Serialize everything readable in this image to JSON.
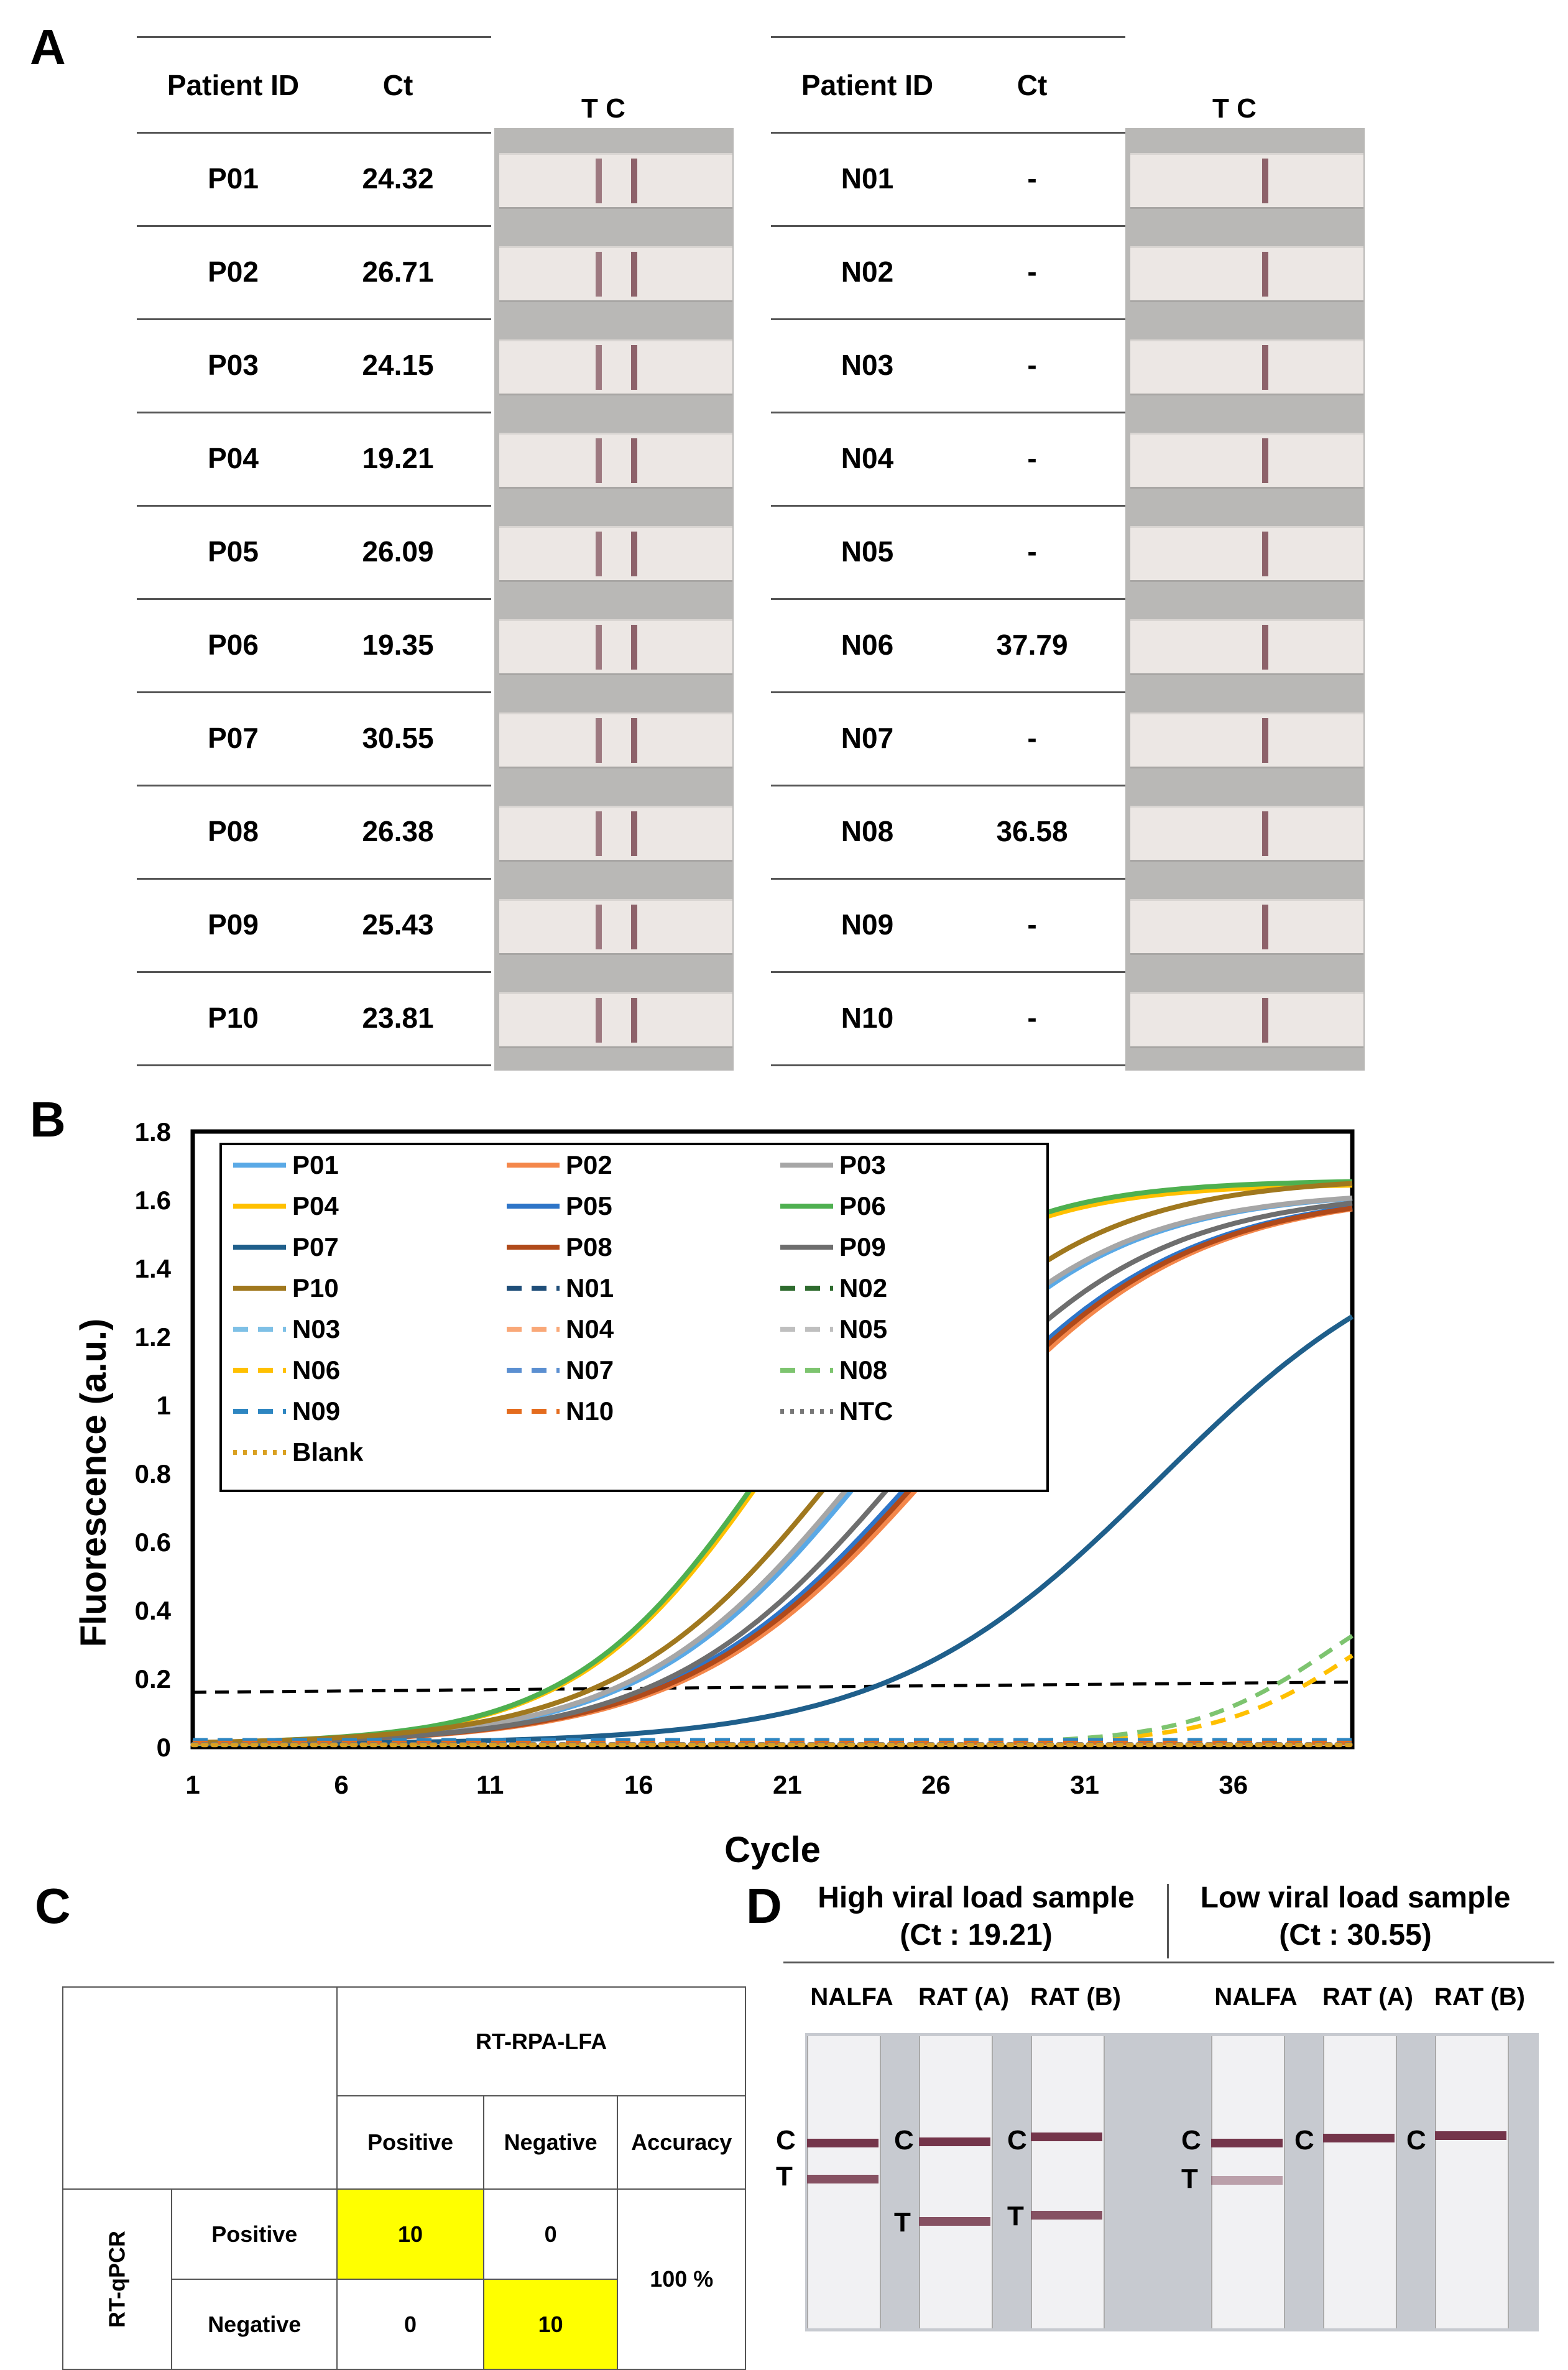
{
  "panels": {
    "a": "A",
    "b": "B",
    "c": "C",
    "d": "D"
  },
  "panel_a": {
    "col_patient": "Patient ID",
    "col_ct": "Ct",
    "strip_header": "T C",
    "positive_rows": [
      {
        "id": "P01",
        "ct": "24.32",
        "test_line": true
      },
      {
        "id": "P02",
        "ct": "26.71",
        "test_line": true
      },
      {
        "id": "P03",
        "ct": "24.15",
        "test_line": true
      },
      {
        "id": "P04",
        "ct": "19.21",
        "test_line": true
      },
      {
        "id": "P05",
        "ct": "26.09",
        "test_line": true
      },
      {
        "id": "P06",
        "ct": "19.35",
        "test_line": true
      },
      {
        "id": "P07",
        "ct": "30.55",
        "test_line": true
      },
      {
        "id": "P08",
        "ct": "26.38",
        "test_line": true
      },
      {
        "id": "P09",
        "ct": "25.43",
        "test_line": true
      },
      {
        "id": "P10",
        "ct": "23.81",
        "test_line": true
      }
    ],
    "negative_rows": [
      {
        "id": "N01",
        "ct": "-",
        "test_line": false
      },
      {
        "id": "N02",
        "ct": "-",
        "test_line": false
      },
      {
        "id": "N03",
        "ct": "-",
        "test_line": false
      },
      {
        "id": "N04",
        "ct": "-",
        "test_line": false
      },
      {
        "id": "N05",
        "ct": "-",
        "test_line": false
      },
      {
        "id": "N06",
        "ct": "37.79",
        "test_line": false
      },
      {
        "id": "N07",
        "ct": "-",
        "test_line": false
      },
      {
        "id": "N08",
        "ct": "36.58",
        "test_line": false
      },
      {
        "id": "N09",
        "ct": "-",
        "test_line": false
      },
      {
        "id": "N10",
        "ct": "-",
        "test_line": false
      }
    ]
  },
  "chart_data": {
    "type": "line",
    "xlabel": "Cycle",
    "ylabel": "Fluorescence (a.u.)",
    "xlim": [
      1,
      40
    ],
    "ylim": [
      0,
      1.8
    ],
    "xticks": [
      1,
      6,
      11,
      16,
      21,
      26,
      31,
      36
    ],
    "yticks": [
      0,
      0.2,
      0.4,
      0.6,
      0.8,
      1,
      1.2,
      1.4,
      1.6,
      1.8
    ],
    "ytick_labels": [
      "0",
      "0.2",
      "0.4",
      "0.6",
      "0.8",
      "1",
      "1.2",
      "1.4",
      "1.6",
      "1.8"
    ],
    "legend_position": "top-left",
    "threshold": {
      "x": [
        1,
        40
      ],
      "y": [
        0.16,
        0.19
      ]
    },
    "series": [
      {
        "name": "P01",
        "color": "#5aa9e6",
        "style": "solid",
        "mid": 23.8,
        "top": 1.62,
        "k": 0.26
      },
      {
        "name": "P02",
        "color": "#f4874b",
        "style": "solid",
        "mid": 26.0,
        "top": 1.62,
        "k": 0.24
      },
      {
        "name": "P03",
        "color": "#a6a6a6",
        "style": "solid",
        "mid": 23.6,
        "top": 1.62,
        "k": 0.26
      },
      {
        "name": "P04",
        "color": "#ffc000",
        "style": "solid",
        "mid": 20.5,
        "top": 1.64,
        "k": 0.3
      },
      {
        "name": "P05",
        "color": "#2e75c8",
        "style": "solid",
        "mid": 25.6,
        "top": 1.62,
        "k": 0.24
      },
      {
        "name": "P06",
        "color": "#4eb050",
        "style": "solid",
        "mid": 20.4,
        "top": 1.65,
        "k": 0.3
      },
      {
        "name": "P07",
        "color": "#1f5f8b",
        "style": "solid",
        "mid": 33.5,
        "top": 1.55,
        "k": 0.22
      },
      {
        "name": "P08",
        "color": "#b04a1a",
        "style": "solid",
        "mid": 25.8,
        "top": 1.62,
        "k": 0.24
      },
      {
        "name": "P09",
        "color": "#6e6e6e",
        "style": "solid",
        "mid": 25.0,
        "top": 1.62,
        "k": 0.25
      },
      {
        "name": "P10",
        "color": "#a0781e",
        "style": "solid",
        "mid": 23.0,
        "top": 1.66,
        "k": 0.26
      },
      {
        "name": "N01",
        "color": "#1f4e79",
        "style": "dash",
        "flat": 0.01
      },
      {
        "name": "N02",
        "color": "#2e6b2e",
        "style": "dash",
        "flat": 0.01
      },
      {
        "name": "N03",
        "color": "#7ec0e6",
        "style": "dash",
        "flat": 0.012
      },
      {
        "name": "N04",
        "color": "#f9a878",
        "style": "dash",
        "flat": 0.01
      },
      {
        "name": "N05",
        "color": "#bfbfbf",
        "style": "dash",
        "flat": 0.01
      },
      {
        "name": "N06",
        "color": "#ffc000",
        "style": "dash",
        "late_mid": 40.3,
        "late_top": 0.55
      },
      {
        "name": "N07",
        "color": "#5b8fd1",
        "style": "dash",
        "flat": 0.012
      },
      {
        "name": "N08",
        "color": "#7dc46f",
        "style": "dash",
        "late_mid": 39.3,
        "late_top": 0.55
      },
      {
        "name": "N09",
        "color": "#2e86c1",
        "style": "dash",
        "flat": 0.02
      },
      {
        "name": "N10",
        "color": "#e46c1e",
        "style": "dash",
        "flat": 0.012
      },
      {
        "name": "NTC",
        "color": "#777777",
        "style": "dot",
        "flat": 0.008
      },
      {
        "name": "Blank",
        "color": "#d9a021",
        "style": "dot",
        "flat": 0.006
      }
    ]
  },
  "panel_c": {
    "top_header": "RT-RPA-LFA",
    "col_positive": "Positive",
    "col_negative": "Negative",
    "col_accuracy": "Accuracy",
    "row_group": "RT-qPCR",
    "row_positive": "Positive",
    "row_negative": "Negative",
    "pp": "10",
    "pn": "0",
    "np": "0",
    "nn": "10",
    "accuracy": "100 %",
    "highlight_color": "#ffff00"
  },
  "panel_d": {
    "high_title": "High viral load sample",
    "high_ct": "(Ct : 19.21)",
    "low_title": "Low viral load sample",
    "low_ct": "(Ct : 30.55)",
    "strip_labels": [
      "NALFA",
      "RAT (A)",
      "RAT (B)",
      "NALFA",
      "RAT (A)",
      "RAT (B)"
    ],
    "c_label": "C",
    "t_label": "T"
  }
}
